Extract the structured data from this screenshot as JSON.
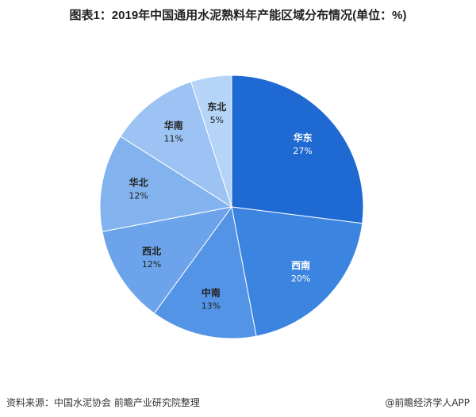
{
  "chart_data": {
    "type": "pie",
    "title": "图表1：2019年中国通用水泥熟料年产能区域分布情况(单位：%)",
    "start_angle": "12 o'clock, clockwise",
    "slices": [
      {
        "label": "华东",
        "value": 27,
        "display": "27%",
        "color": "#1f69d3"
      },
      {
        "label": "西南",
        "value": 20,
        "display": "20%",
        "color": "#3b84e0"
      },
      {
        "label": "中南",
        "value": 13,
        "display": "13%",
        "color": "#5494e6"
      },
      {
        "label": "西北",
        "value": 12,
        "display": "12%",
        "color": "#6ca3ea"
      },
      {
        "label": "华北",
        "value": 12,
        "display": "12%",
        "color": "#83b3ee"
      },
      {
        "label": "华南",
        "value": 11,
        "display": "11%",
        "color": "#9cc3f3"
      },
      {
        "label": "东北",
        "value": 5,
        "display": "5%",
        "color": "#b6d4f7"
      }
    ]
  },
  "footer": {
    "source": "资料来源：中国水泥协会 前瞻产业研究院整理",
    "brand": "@前瞻经济学人APP"
  }
}
